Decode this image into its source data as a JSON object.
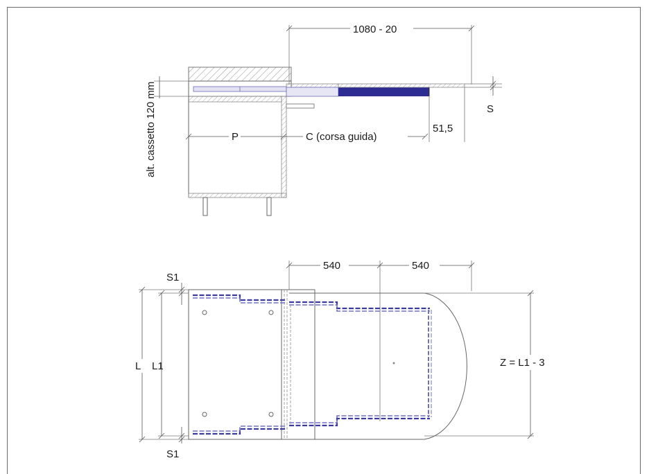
{
  "labels": {
    "top_total": "1080 - 20",
    "drawer_height": "alt. cassetto 120 mm",
    "s_side": "S",
    "offset": "51,5",
    "p": "P",
    "stroke": "C (corsa guida)",
    "ext1": "540",
    "ext2": "540",
    "s1_top": "S1",
    "s1_bottom": "S1",
    "l": "L",
    "l1": "L1",
    "z": "Z = L1 - 3"
  },
  "colors": {
    "rail_blue": "#2c2c92",
    "hatch": "#9a9a9a",
    "line": "#666666"
  }
}
